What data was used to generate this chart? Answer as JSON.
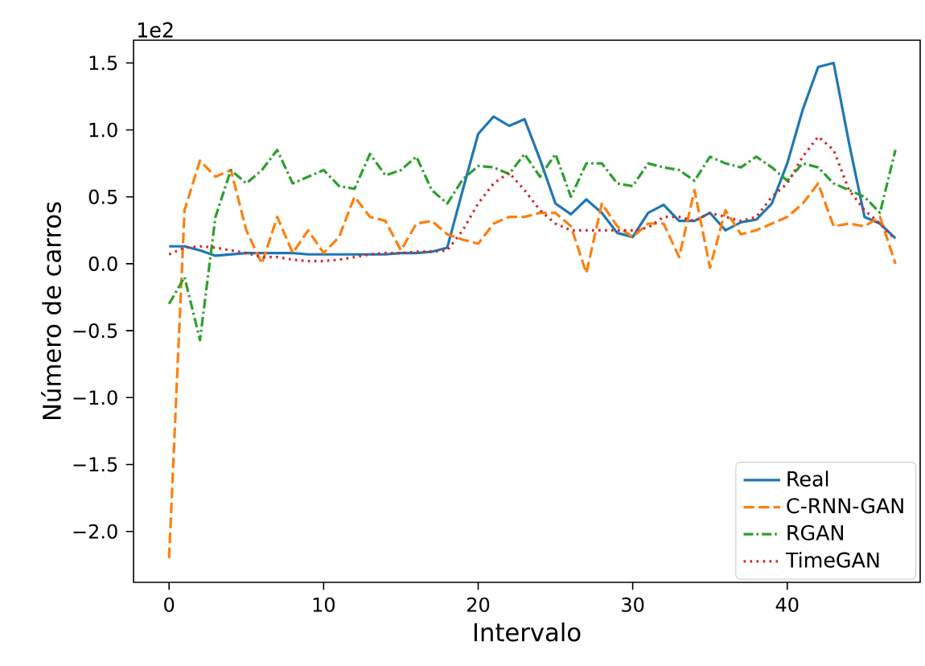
{
  "chart_data": {
    "type": "line",
    "xlabel": "Intervalo",
    "ylabel": "Número de carros",
    "annotations": [
      "1e2"
    ],
    "x": [
      0,
      1,
      2,
      3,
      4,
      5,
      6,
      7,
      8,
      9,
      10,
      11,
      12,
      13,
      14,
      15,
      16,
      17,
      18,
      19,
      20,
      21,
      22,
      23,
      24,
      25,
      26,
      27,
      28,
      29,
      30,
      31,
      32,
      33,
      34,
      35,
      36,
      37,
      38,
      39,
      40,
      41,
      42,
      43,
      44,
      45,
      46,
      47
    ],
    "series": [
      {
        "name": "Real",
        "color": "#1f77b4",
        "line_style": "solid",
        "values": [
          0.13,
          0.13,
          0.1,
          0.06,
          0.07,
          0.08,
          0.08,
          0.08,
          0.08,
          0.07,
          0.07,
          0.07,
          0.07,
          0.07,
          0.07,
          0.08,
          0.08,
          0.09,
          0.12,
          0.55,
          0.97,
          1.1,
          1.03,
          1.08,
          0.78,
          0.45,
          0.37,
          0.48,
          0.38,
          0.23,
          0.2,
          0.38,
          0.44,
          0.32,
          0.32,
          0.38,
          0.25,
          0.31,
          0.33,
          0.45,
          0.75,
          1.15,
          1.47,
          1.5,
          0.9,
          0.35,
          0.3,
          0.19
        ]
      },
      {
        "name": "C-RNN-GAN",
        "color": "#ff7f0e",
        "line_style": "dashed",
        "values": [
          -2.2,
          0.4,
          0.77,
          0.65,
          0.7,
          0.25,
          0.0,
          0.35,
          0.08,
          0.25,
          0.08,
          0.2,
          0.5,
          0.35,
          0.32,
          0.1,
          0.3,
          0.32,
          0.22,
          0.18,
          0.15,
          0.3,
          0.35,
          0.35,
          0.38,
          0.38,
          0.28,
          -0.07,
          0.45,
          0.28,
          0.2,
          0.3,
          0.3,
          0.05,
          0.55,
          -0.03,
          0.4,
          0.22,
          0.25,
          0.3,
          0.35,
          0.45,
          0.6,
          0.28,
          0.3,
          0.28,
          0.35,
          0.0
        ]
      },
      {
        "name": "RGAN",
        "color": "#2ca02c",
        "line_style": "dashdot",
        "values": [
          -0.3,
          -0.1,
          -0.57,
          0.35,
          0.7,
          0.6,
          0.7,
          0.85,
          0.6,
          0.65,
          0.7,
          0.58,
          0.56,
          0.82,
          0.66,
          0.7,
          0.8,
          0.55,
          0.45,
          0.63,
          0.73,
          0.72,
          0.67,
          0.82,
          0.65,
          0.82,
          0.5,
          0.75,
          0.75,
          0.6,
          0.58,
          0.75,
          0.72,
          0.7,
          0.62,
          0.8,
          0.75,
          0.72,
          0.8,
          0.72,
          0.62,
          0.75,
          0.72,
          0.6,
          0.55,
          0.5,
          0.38,
          0.85
        ]
      },
      {
        "name": "TimeGAN",
        "color": "#d62728",
        "line_style": "dotted",
        "values": [
          0.07,
          0.12,
          0.13,
          0.12,
          0.1,
          0.08,
          0.05,
          0.05,
          0.03,
          0.02,
          0.02,
          0.03,
          0.05,
          0.07,
          0.08,
          0.08,
          0.09,
          0.09,
          0.1,
          0.25,
          0.45,
          0.6,
          0.68,
          0.55,
          0.4,
          0.3,
          0.25,
          0.25,
          0.25,
          0.25,
          0.25,
          0.27,
          0.35,
          0.35,
          0.32,
          0.38,
          0.35,
          0.32,
          0.35,
          0.5,
          0.6,
          0.8,
          0.95,
          0.85,
          0.55,
          0.4,
          0.3,
          0.18
        ]
      }
    ],
    "xlim": [
      -2.3,
      48.6
    ],
    "ylim": [
      -2.38,
      1.67
    ],
    "xticks": [
      0,
      10,
      20,
      30,
      40
    ],
    "yticks": [
      {
        "value": -2.0,
        "label": "−2.0"
      },
      {
        "value": -1.5,
        "label": "−1.5"
      },
      {
        "value": -1.0,
        "label": "−1.0"
      },
      {
        "value": -0.5,
        "label": "−0.5"
      },
      {
        "value": 0.0,
        "label": "0.0"
      },
      {
        "value": 0.5,
        "label": "0.5"
      },
      {
        "value": 1.0,
        "label": "1.0"
      },
      {
        "value": 1.5,
        "label": "1.5"
      }
    ],
    "grid": false,
    "legend": "bottom right",
    "marker": "none"
  }
}
